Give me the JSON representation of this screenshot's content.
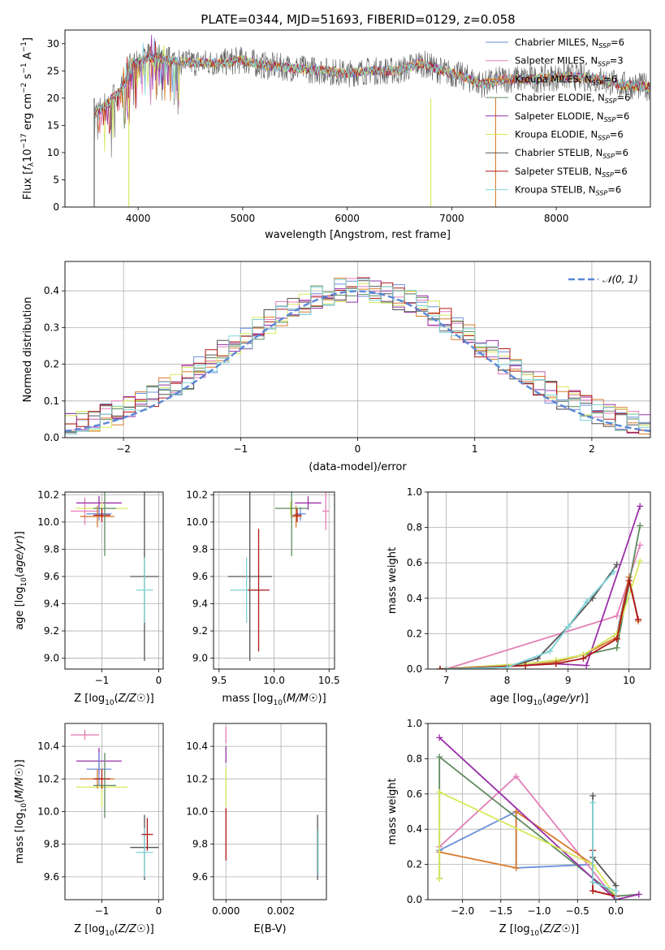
{
  "title": "PLATE=0344, MJD=51693, FIBERID=0129, z=0.058",
  "colors": {
    "chabrier_miles": "#6b8fdc",
    "salpeter_miles": "#e47fb8",
    "kroupa_miles": "#d97b2b",
    "chabrier_elodie": "#5f8a5f",
    "salpeter_elodie": "#9a2fa8",
    "kroupa_elodie": "#d8e85a",
    "chabrier_stelib": "#555555",
    "salpeter_stelib": "#b01818",
    "kroupa_stelib": "#7fd3d8",
    "normal_curve": "#5b86d6",
    "grid": "#b0b0b0"
  },
  "chart_data": [
    {
      "id": "spectrum",
      "type": "line",
      "xlabel": "wavelength [Angstrom, rest frame]",
      "ylabel": "Flux [f_λ10^-17 erg cm^-2 s^-1 A^-1]",
      "xlim": [
        3300,
        8900
      ],
      "ylim": [
        0,
        32.5
      ],
      "xticks": [
        "4000",
        "5000",
        "6000",
        "7000",
        "8000"
      ],
      "yticks": [
        "0",
        "5",
        "10",
        "15",
        "20",
        "25",
        "30"
      ],
      "grid": false,
      "legend_position": "right",
      "legend": [
        {
          "label": "Chabrier MILES, N",
          "sub": "SSP",
          "suffix": "=6",
          "color_key": "chabrier_miles"
        },
        {
          "label": "Salpeter MILES, N",
          "sub": "SSP",
          "suffix": "=3",
          "color_key": "salpeter_miles"
        },
        {
          "label": "Kroupa MILES, N",
          "sub": "SSP",
          "suffix": "=6",
          "color_key": "kroupa_miles"
        },
        {
          "label": "Chabrier ELODIE, N",
          "sub": "SSP",
          "suffix": "=6",
          "color_key": "chabrier_elodie"
        },
        {
          "label": "Salpeter ELODIE, N",
          "sub": "SSP",
          "suffix": "=6",
          "color_key": "salpeter_elodie"
        },
        {
          "label": "Kroupa ELODIE, N",
          "sub": "SSP",
          "suffix": "=6",
          "color_key": "kroupa_elodie"
        },
        {
          "label": "Chabrier STELIB, N",
          "sub": "SSP",
          "suffix": "=6",
          "color_key": "chabrier_stelib"
        },
        {
          "label": "Salpeter STELIB, N",
          "sub": "SSP",
          "suffix": "=6",
          "color_key": "salpeter_stelib"
        },
        {
          "label": "Kroupa STELIB, N",
          "sub": "SSP",
          "suffix": "=6",
          "color_key": "kroupa_stelib"
        }
      ],
      "series_approx": [
        {
          "name": "data",
          "x": [
            3580,
            3700,
            3850,
            3950,
            4100,
            4300,
            4500,
            4800,
            5000,
            5200,
            5500,
            5800,
            6000,
            6200,
            6500,
            6700,
            6900,
            7100,
            7300,
            7500,
            7800,
            8100,
            8400,
            8600,
            8900
          ],
          "y": [
            17,
            19,
            22,
            26,
            27.5,
            27,
            26.5,
            26.5,
            27,
            26,
            25.5,
            25,
            24.5,
            25,
            25,
            26.5,
            25,
            24,
            22.5,
            23.5,
            23.5,
            24,
            23.5,
            22.5,
            22
          ]
        }
      ],
      "spike_lines": [
        {
          "x": 3580,
          "color_key": "chabrier_stelib"
        },
        {
          "x": 3910,
          "color_key": "kroupa_elodie"
        },
        {
          "x": 6800,
          "color_key": "kroupa_elodie"
        },
        {
          "x": 7420,
          "color_key": "kroupa_miles"
        }
      ]
    },
    {
      "id": "residuals",
      "type": "step",
      "xlabel": "(data-model)/error",
      "ylabel": "Normed distribution",
      "xlim": [
        -2.5,
        2.5
      ],
      "ylim": [
        0,
        0.48
      ],
      "xticks": [
        "−2",
        "−1",
        "0",
        "1",
        "2"
      ],
      "yticks": [
        "0.0",
        "0.1",
        "0.2",
        "0.3",
        "0.4"
      ],
      "grid": true,
      "legend_position": "top-right",
      "legend": [
        {
          "label": "𝒩(0, 1)",
          "color_key": "normal_curve"
        }
      ],
      "bin_width": 0.1,
      "bins_x_start": -2.5,
      "histogram_mean": [
        0.03,
        0.04,
        0.04,
        0.05,
        0.05,
        0.05,
        0.06,
        0.07,
        0.08,
        0.09,
        0.1,
        0.11,
        0.13,
        0.14,
        0.14,
        0.15,
        0.16,
        0.18,
        0.2,
        0.22,
        0.25,
        0.27,
        0.28,
        0.29,
        0.3,
        0.3,
        0.31,
        0.33,
        0.35,
        0.37,
        0.38,
        0.39,
        0.4,
        0.41,
        0.41,
        0.4,
        0.39,
        0.38,
        0.37,
        0.35,
        0.34,
        0.32,
        0.31,
        0.3,
        0.28,
        0.26,
        0.24,
        0.22,
        0.21,
        0.2,
        0.18,
        0.16,
        0.15,
        0.14,
        0.13,
        0.12,
        0.1,
        0.09,
        0.08,
        0.08,
        0.07,
        0.06,
        0.06,
        0.05,
        0.05,
        0.04,
        0.04,
        0.04,
        0.03,
        0.03,
        0.03,
        0.03,
        0.02,
        0.02,
        0.02,
        0.02,
        0.02,
        0.02,
        0.02,
        0.02,
        0.02,
        0.02,
        0.02,
        0.02,
        0.02,
        0.02,
        0.02,
        0.02,
        0.02,
        0.02,
        0.02,
        0.02,
        0.02,
        0.02,
        0.02,
        0.02,
        0.02,
        0.02,
        0.02,
        0.02
      ]
    },
    {
      "id": "age_vs_Z",
      "type": "errorbar",
      "xlabel": "Z [log10(Z/Z☉)]",
      "ylabel": "age [log10(age/yr)]",
      "xlim": [
        -1.65,
        0.08
      ],
      "ylim": [
        8.92,
        10.22
      ],
      "xticks": [
        "−1",
        "0"
      ],
      "yticks": [
        "9.0",
        "9.2",
        "9.4",
        "9.6",
        "9.8",
        "10.0",
        "10.2"
      ],
      "grid": true,
      "points": [
        {
          "x": -1.3,
          "y": 10.08,
          "xerr": 0.25,
          "yerr": 0.1,
          "color_key": "salpeter_miles"
        },
        {
          "x": -1.05,
          "y": 10.14,
          "xerr": 0.4,
          "yerr": 0.05,
          "color_key": "salpeter_elodie"
        },
        {
          "x": -1.0,
          "y": 10.1,
          "xerr": 0.45,
          "yerr": 0.05,
          "color_key": "kroupa_elodie"
        },
        {
          "x": -1.05,
          "y": 10.06,
          "xerr": 0.22,
          "yerr": 0.05,
          "color_key": "chabrier_miles"
        },
        {
          "x": -1.08,
          "y": 10.04,
          "xerr": 0.3,
          "yerr": 0.08,
          "color_key": "kroupa_miles"
        },
        {
          "x": -1.0,
          "y": 10.05,
          "xerr": 0.15,
          "yerr": 0.05,
          "color_key": "salpeter_stelib"
        },
        {
          "x": -0.95,
          "y": 10.1,
          "xerr": 0.2,
          "yerr": 0.35,
          "color_key": "chabrier_elodie"
        },
        {
          "x": -0.25,
          "y": 9.6,
          "xerr": 0.25,
          "yerr": 0.62,
          "color_key": "chabrier_stelib"
        },
        {
          "x": -0.25,
          "y": 9.5,
          "xerr": 0.15,
          "yerr": 0.24,
          "color_key": "kroupa_stelib"
        }
      ]
    },
    {
      "id": "age_vs_mass",
      "type": "errorbar",
      "xlabel": "mass [log10(M/M☉)]",
      "xlim": [
        9.45,
        10.55
      ],
      "ylim": [
        8.92,
        10.22
      ],
      "xticks": [
        "9.5",
        "10.0",
        "10.5"
      ],
      "yticks": [
        "9.0",
        "9.2",
        "9.4",
        "9.6",
        "9.8",
        "10.0",
        "10.2"
      ],
      "grid": true,
      "points": [
        {
          "x": 10.47,
          "y": 10.08,
          "xerr": 0.03,
          "yerr": 0.14,
          "color_key": "salpeter_miles"
        },
        {
          "x": 10.31,
          "y": 10.14,
          "xerr": 0.12,
          "yerr": 0.05,
          "color_key": "salpeter_elodie"
        },
        {
          "x": 10.15,
          "y": 10.1,
          "xerr": 0.05,
          "yerr": 0.05,
          "color_key": "kroupa_elodie"
        },
        {
          "x": 10.24,
          "y": 10.06,
          "xerr": 0.05,
          "yerr": 0.05,
          "color_key": "chabrier_miles"
        },
        {
          "x": 10.2,
          "y": 10.04,
          "xerr": 0.05,
          "yerr": 0.08,
          "color_key": "kroupa_miles"
        },
        {
          "x": 10.21,
          "y": 10.05,
          "xerr": 0.04,
          "yerr": 0.05,
          "color_key": "salpeter_stelib"
        },
        {
          "x": 10.16,
          "y": 10.1,
          "xerr": 0.15,
          "yerr": 0.35,
          "color_key": "chabrier_elodie"
        },
        {
          "x": 9.78,
          "y": 9.6,
          "xerr": 0.2,
          "yerr": 0.62,
          "color_key": "chabrier_stelib"
        },
        {
          "x": 9.75,
          "y": 9.5,
          "xerr": 0.15,
          "yerr": 0.24,
          "color_key": "kroupa_stelib"
        },
        {
          "x": 9.86,
          "y": 9.5,
          "xerr": 0.1,
          "yerr": 0.45,
          "color_key": "salpeter_stelib"
        }
      ]
    },
    {
      "id": "mass_weight_vs_age",
      "type": "line",
      "xlabel": "age [log10(age/yr)]",
      "ylabel": "mass weight",
      "xlim": [
        6.7,
        10.35
      ],
      "ylim": [
        0,
        1
      ],
      "xticks": [
        "7",
        "8",
        "9",
        "10"
      ],
      "yticks": [
        "0.0",
        "0.2",
        "0.4",
        "0.6",
        "0.8",
        "1.0"
      ],
      "grid": true,
      "series": [
        {
          "color_key": "chabrier_miles",
          "x": [
            6.9,
            8.3,
            8.8,
            9.25,
            9.8,
            10.0,
            10.15
          ],
          "y": [
            0,
            0.02,
            0.04,
            0.08,
            0.2,
            0.52,
            0.28
          ]
        },
        {
          "color_key": "salpeter_miles",
          "x": [
            7.0,
            9.8,
            10.18
          ],
          "y": [
            0,
            0.3,
            0.7
          ]
        },
        {
          "color_key": "kroupa_miles",
          "x": [
            6.9,
            8.3,
            8.8,
            9.25,
            9.8,
            10.0,
            10.15
          ],
          "y": [
            0,
            0.02,
            0.04,
            0.08,
            0.18,
            0.52,
            0.27
          ]
        },
        {
          "color_key": "chabrier_elodie",
          "x": [
            6.9,
            8.3,
            8.8,
            9.25,
            9.8,
            10.18
          ],
          "y": [
            0,
            0.03,
            0.05,
            0.08,
            0.12,
            0.81
          ]
        },
        {
          "color_key": "salpeter_elodie",
          "x": [
            6.9,
            8.8,
            9.3,
            10.18
          ],
          "y": [
            0,
            0.03,
            0.02,
            0.92
          ]
        },
        {
          "color_key": "kroupa_elodie",
          "x": [
            6.9,
            8.3,
            8.8,
            9.25,
            9.8,
            10.18
          ],
          "y": [
            0,
            0.03,
            0.05,
            0.08,
            0.2,
            0.61
          ]
        },
        {
          "color_key": "chabrier_stelib",
          "x": [
            7.0,
            8.0,
            8.5,
            9.0,
            9.4,
            9.8
          ],
          "y": [
            0,
            0.01,
            0.06,
            0.24,
            0.4,
            0.59
          ]
        },
        {
          "color_key": "salpeter_stelib",
          "x": [
            6.9,
            8.3,
            8.8,
            9.25,
            9.8,
            10.0,
            10.15
          ],
          "y": [
            0,
            0.02,
            0.03,
            0.06,
            0.17,
            0.5,
            0.28
          ]
        },
        {
          "color_key": "kroupa_stelib",
          "x": [
            7.0,
            8.0,
            8.7,
            9.0,
            9.3,
            9.75
          ],
          "y": [
            0,
            0.01,
            0.1,
            0.24,
            0.38,
            0.55
          ]
        }
      ]
    },
    {
      "id": "mass_vs_Z",
      "type": "errorbar",
      "xlabel": "Z [log10(Z/Z☉)]",
      "ylabel": "mass [log10(M/M☉)]",
      "xlim": [
        -1.65,
        0.08
      ],
      "ylim": [
        9.46,
        10.54
      ],
      "xticks": [
        "−1",
        "0"
      ],
      "yticks": [
        "9.6",
        "9.8",
        "10.0",
        "10.2",
        "10.4"
      ],
      "grid": true,
      "points": [
        {
          "x": -1.3,
          "y": 10.47,
          "xerr": 0.25,
          "yerr": 0.03,
          "color_key": "salpeter_miles"
        },
        {
          "x": -1.05,
          "y": 10.31,
          "xerr": 0.4,
          "yerr": 0.08,
          "color_key": "salpeter_elodie"
        },
        {
          "x": -1.0,
          "y": 10.15,
          "xerr": 0.45,
          "yerr": 0.12,
          "color_key": "kroupa_elodie"
        },
        {
          "x": -1.05,
          "y": 10.26,
          "xerr": 0.22,
          "yerr": 0.1,
          "color_key": "chabrier_miles"
        },
        {
          "x": -1.08,
          "y": 10.2,
          "xerr": 0.3,
          "yerr": 0.06,
          "color_key": "kroupa_miles"
        },
        {
          "x": -1.0,
          "y": 10.2,
          "xerr": 0.15,
          "yerr": 0.06,
          "color_key": "salpeter_stelib"
        },
        {
          "x": -0.95,
          "y": 10.16,
          "xerr": 0.2,
          "yerr": 0.2,
          "color_key": "chabrier_elodie"
        },
        {
          "x": -0.25,
          "y": 9.78,
          "xerr": 0.25,
          "yerr": 0.2,
          "color_key": "chabrier_stelib"
        },
        {
          "x": -0.25,
          "y": 9.75,
          "xerr": 0.15,
          "yerr": 0.15,
          "color_key": "kroupa_stelib"
        },
        {
          "x": -0.2,
          "y": 9.86,
          "xerr": 0.1,
          "yerr": 0.1,
          "color_key": "salpeter_stelib"
        }
      ]
    },
    {
      "id": "mass_vs_ebv",
      "type": "errorbar",
      "xlabel": "E(B-V)",
      "xlim": [
        -0.00045,
        0.00365
      ],
      "ylim": [
        9.46,
        10.54
      ],
      "xticks": [
        "0.000",
        "0.002"
      ],
      "yticks": [
        "9.6",
        "9.8",
        "10.0",
        "10.2",
        "10.4"
      ],
      "grid": true,
      "points": [
        {
          "x": 0.0,
          "y": 10.47,
          "yerr": 0.05,
          "color_key": "salpeter_miles"
        },
        {
          "x": 0.0,
          "y": 10.35,
          "yerr": 0.05,
          "color_key": "salpeter_elodie"
        },
        {
          "x": 0.0,
          "y": 10.15,
          "yerr": 0.12,
          "color_key": "kroupa_elodie"
        },
        {
          "x": 0.0,
          "y": 9.86,
          "yerr": 0.16,
          "color_key": "salpeter_stelib"
        },
        {
          "x": 0.00333,
          "y": 9.78,
          "yerr": 0.2,
          "color_key": "chabrier_stelib"
        },
        {
          "x": 0.00335,
          "y": 9.75,
          "yerr": 0.14,
          "color_key": "kroupa_stelib"
        }
      ]
    },
    {
      "id": "mass_weight_vs_Z",
      "type": "line",
      "xlabel": "Z [log10(Z/Z☉)]",
      "ylabel": "mass weight",
      "xlim": [
        -2.45,
        0.45
      ],
      "ylim": [
        0,
        1
      ],
      "xticks": [
        "−2.0",
        "−1.5",
        "−1.0",
        "−0.5",
        "0.0"
      ],
      "yticks": [
        "0.0",
        "0.2",
        "0.4",
        "0.6",
        "0.8",
        "1.0"
      ],
      "grid": true,
      "series": [
        {
          "color_key": "chabrier_miles",
          "x": [
            -2.3,
            -1.3,
            -1.3,
            -0.3,
            -0.3,
            0.0,
            0.0
          ],
          "y": [
            0.28,
            0.5,
            0.18,
            0.2,
            0.05,
            0.02,
            0.0
          ]
        },
        {
          "color_key": "salpeter_miles",
          "x": [
            -2.3,
            -1.3,
            0.0
          ],
          "y": [
            0.3,
            0.7,
            0.0
          ]
        },
        {
          "color_key": "kroupa_miles",
          "x": [
            -2.3,
            -1.3,
            -1.3,
            -0.3,
            -0.3,
            0.0,
            0.0
          ],
          "y": [
            0.27,
            0.18,
            0.5,
            0.2,
            0.05,
            0.02,
            0.0
          ]
        },
        {
          "color_key": "chabrier_elodie",
          "x": [
            -2.3,
            -2.3,
            0.0,
            0.3
          ],
          "y": [
            0.12,
            0.81,
            0.02,
            0.03
          ]
        },
        {
          "color_key": "salpeter_elodie",
          "x": [
            -2.3,
            0.0,
            0.3
          ],
          "y": [
            0.92,
            0.0,
            0.03
          ]
        },
        {
          "color_key": "kroupa_elodie",
          "x": [
            -2.3,
            -2.3,
            -0.3,
            0.0
          ],
          "y": [
            0.12,
            0.61,
            0.2,
            0.02
          ]
        },
        {
          "color_key": "chabrier_stelib",
          "x": [
            -0.3,
            -0.3,
            0.0,
            0.0
          ],
          "y": [
            0.59,
            0.24,
            0.08,
            0.0
          ]
        },
        {
          "color_key": "salpeter_stelib",
          "x": [
            -0.3,
            -0.3,
            0.0,
            0.0
          ],
          "y": [
            0.28,
            0.05,
            0.02,
            0.0
          ]
        },
        {
          "color_key": "kroupa_stelib",
          "x": [
            -0.3,
            -0.3,
            0.0,
            0.0
          ],
          "y": [
            0.55,
            0.1,
            0.05,
            0.0
          ]
        }
      ]
    }
  ]
}
